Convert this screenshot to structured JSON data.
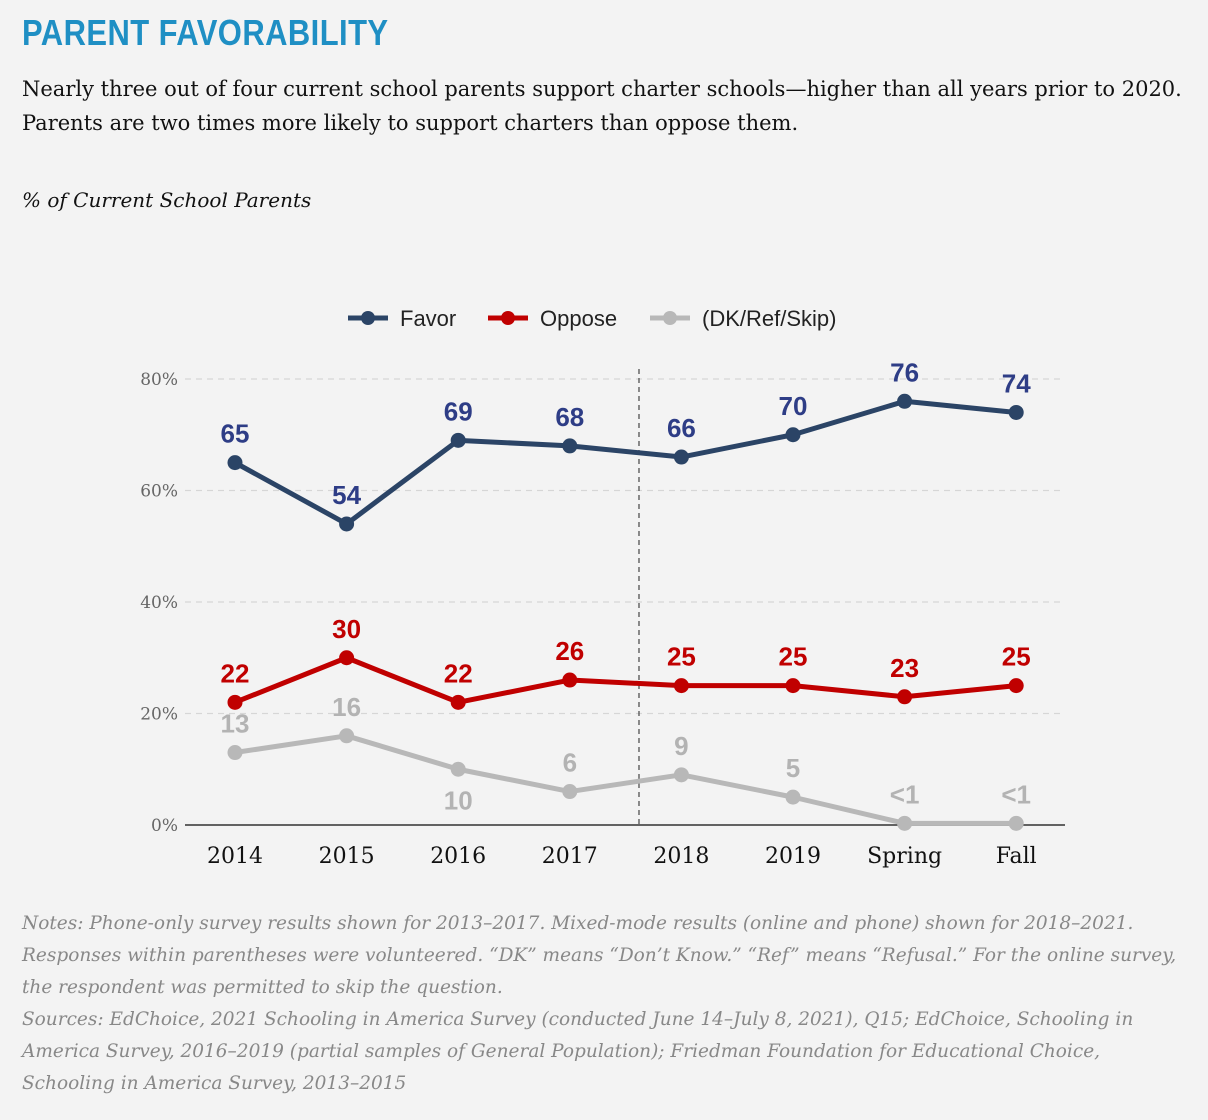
{
  "header": {
    "title": "PARENT FAVORABILITY",
    "description": "Nearly three out of four current school parents support charter schools—higher than all years prior to 2020. Parents are two times more likely to support charters than oppose them.",
    "subtitle": "% of Current School Parents"
  },
  "chart_data": {
    "type": "line",
    "title": "",
    "xlabel": "",
    "ylabel": "",
    "categories": [
      "2014",
      "2015",
      "2016",
      "2017",
      "2018",
      "2019",
      "Spring",
      "Fall"
    ],
    "y_ticks": [
      "0%",
      "20%",
      "40%",
      "60%",
      "80%"
    ],
    "ylim": [
      0,
      80
    ],
    "grid": "horizontal dashed",
    "legend_position": "top-center",
    "divider_between": [
      "2017",
      "2018"
    ],
    "series": [
      {
        "name": "Favor",
        "color": "#2b4466",
        "label_color": "#2e3d86",
        "values": [
          65,
          54,
          69,
          68,
          66,
          70,
          76,
          74
        ],
        "labels": [
          "65",
          "54",
          "69",
          "68",
          "66",
          "70",
          "76",
          "74"
        ]
      },
      {
        "name": "Oppose",
        "color": "#c00000",
        "label_color": "#c00000",
        "values": [
          22,
          30,
          22,
          26,
          25,
          25,
          23,
          25
        ],
        "labels": [
          "22",
          "30",
          "22",
          "26",
          "25",
          "25",
          "23",
          "25"
        ]
      },
      {
        "name": "(DK/Ref/Skip)",
        "color": "#b8b8b8",
        "label_color": "#b3b3b3",
        "values": [
          13,
          16,
          10,
          6,
          9,
          5,
          0.3,
          0.3
        ],
        "labels": [
          "13",
          "16",
          "10",
          "6",
          "9",
          "5",
          "<1",
          "<1"
        ]
      }
    ]
  },
  "footer": {
    "notes": "Notes: Phone-only survey results shown for 2013–2017. Mixed-mode results (online and phone) shown for 2018–2021. Responses within parentheses were volunteered. “DK” means “Don’t Know.”  “Ref” means “Refusal.” For the online survey, the respondent was permitted to skip the question.",
    "sources": "Sources: EdChoice, 2021 Schooling in America Survey (conducted June 14–July 8, 2021), Q15; EdChoice, Schooling in America Survey, 2016–2019 (partial samples of General Population); Friedman Foundation for Educational Choice, Schooling in America Survey, 2013–2015"
  }
}
